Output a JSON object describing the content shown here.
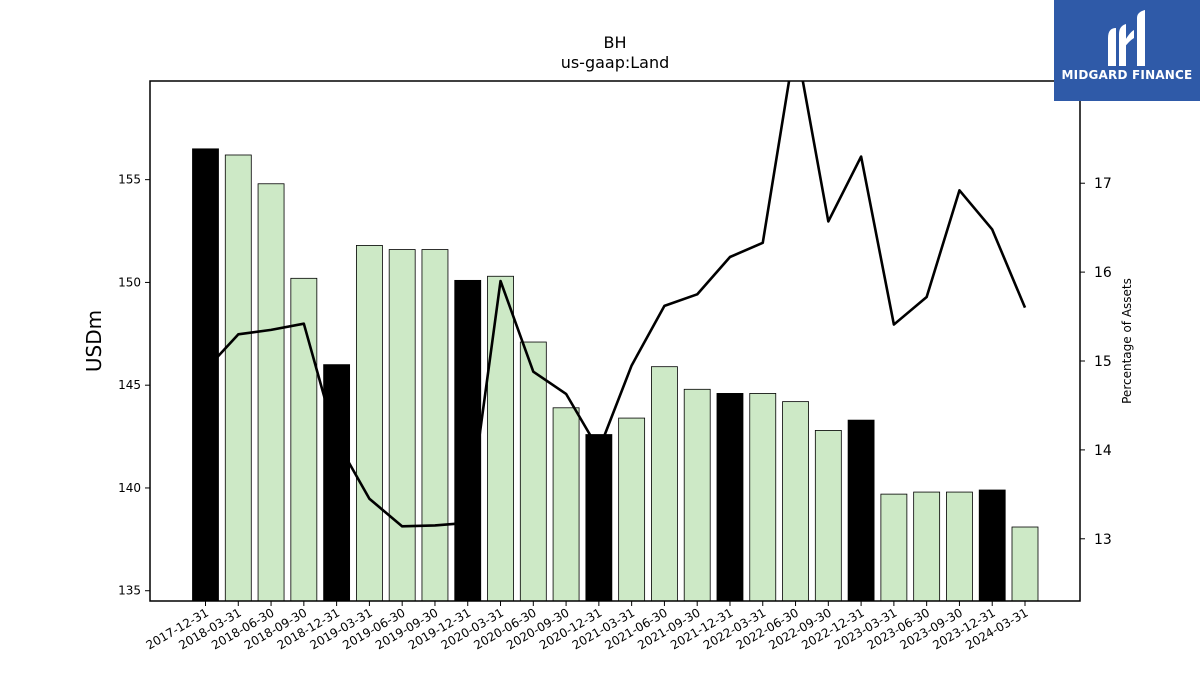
{
  "chart_data": {
    "type": "bar",
    "title": "BH",
    "subtitle": "us-gaap:Land",
    "ylabel": "USDm",
    "y2label": "Percentage of Assets",
    "ylim": [
      134.5,
      159.8
    ],
    "y2lim": [
      12.3,
      18.15
    ],
    "yticks": [
      135,
      140,
      145,
      150,
      155
    ],
    "y2ticks": [
      13,
      14,
      15,
      16,
      17
    ],
    "grid": false,
    "categories": [
      "2017-12-31",
      "2018-03-31",
      "2018-06-30",
      "2018-09-30",
      "2018-12-31",
      "2019-03-31",
      "2019-06-30",
      "2019-09-30",
      "2019-12-31",
      "2020-03-31",
      "2020-06-30",
      "2020-09-30",
      "2020-12-31",
      "2021-03-31",
      "2021-06-30",
      "2021-09-30",
      "2021-12-31",
      "2022-03-31",
      "2022-06-30",
      "2022-09-30",
      "2022-12-31",
      "2023-03-31",
      "2023-06-30",
      "2023-09-30",
      "2023-12-31",
      "2024-03-31"
    ],
    "series": [
      {
        "type": "bar",
        "values": [
          156.5,
          156.2,
          154.8,
          150.2,
          146.0,
          151.8,
          151.6,
          151.6,
          150.1,
          150.3,
          147.1,
          143.9,
          142.6,
          143.4,
          145.9,
          144.8,
          144.6,
          144.6,
          144.2,
          142.8,
          143.3,
          139.7,
          139.8,
          139.8,
          139.9,
          138.1
        ],
        "year_end": [
          true,
          false,
          false,
          false,
          true,
          false,
          false,
          false,
          true,
          false,
          false,
          false,
          true,
          false,
          false,
          false,
          true,
          false,
          false,
          false,
          true,
          false,
          false,
          false,
          true,
          false
        ]
      },
      {
        "type": "line",
        "axis": "right",
        "values": [
          14.9,
          15.3,
          15.35,
          15.42,
          14.1,
          13.45,
          13.14,
          13.15,
          13.18,
          15.9,
          14.88,
          14.63,
          14.0,
          14.95,
          15.62,
          15.75,
          16.17,
          16.33,
          18.6,
          16.57,
          17.3,
          15.41,
          15.72,
          16.92,
          16.48,
          15.6
        ]
      }
    ],
    "colors": {
      "year_end_bar": "#000000",
      "quarter_bar": "#cde9c6",
      "bar_edge": "#000000",
      "line": "#000000"
    }
  },
  "logo": {
    "text": "MIDGARD FINANCE",
    "background": "#2f5aa8"
  }
}
